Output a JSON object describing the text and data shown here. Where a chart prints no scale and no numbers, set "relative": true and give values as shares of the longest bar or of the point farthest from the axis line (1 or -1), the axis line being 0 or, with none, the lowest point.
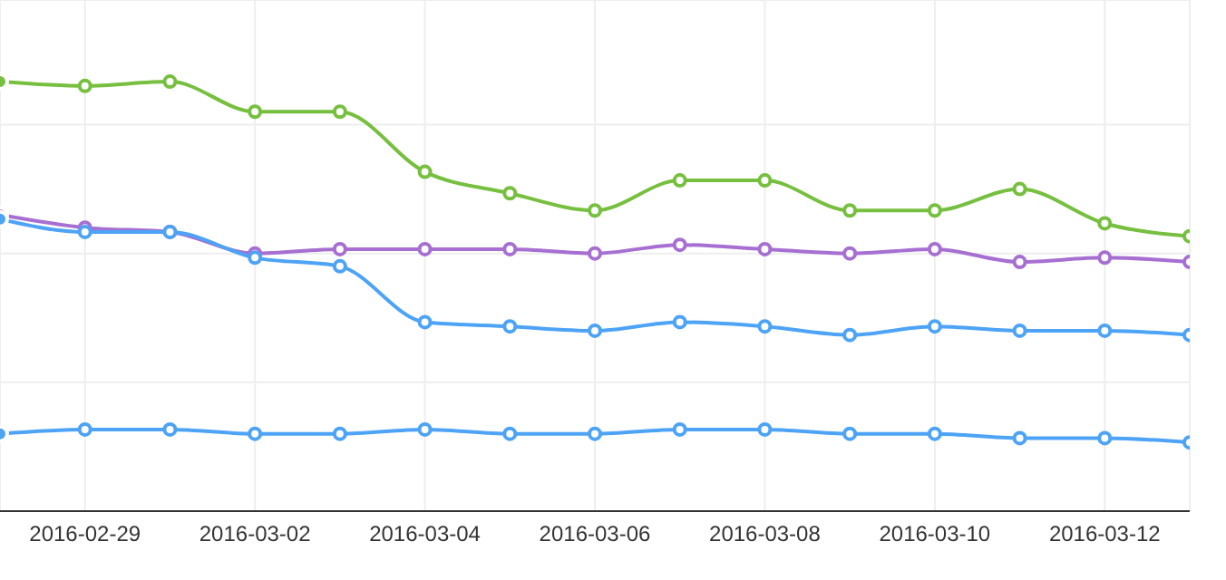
{
  "chart_data": {
    "type": "line",
    "relative": true,
    "grid": true,
    "marker": "circle",
    "line_style": "solid",
    "x": [
      "2016-02-28",
      "2016-02-29",
      "2016-03-01",
      "2016-03-02",
      "2016-03-03",
      "2016-03-04",
      "2016-03-05",
      "2016-03-06",
      "2016-03-07",
      "2016-03-08",
      "2016-03-09",
      "2016-03-10",
      "2016-03-11",
      "2016-03-12",
      "2016-03-13"
    ],
    "xlim": [
      "2016-02-28",
      "2016-03-13"
    ],
    "xticks": [
      "2016-02-29",
      "2016-03-02",
      "2016-03-04",
      "2016-03-06",
      "2016-03-08",
      "2016-03-10",
      "2016-03-12"
    ],
    "series": [
      {
        "color": "#76bf3f",
        "values": [
          1,
          0.99,
          1,
          0.93,
          0.93,
          0.79,
          0.74,
          0.7,
          0.77,
          0.77,
          0.7,
          0.7,
          0.75,
          0.67,
          0.64
        ]
      },
      {
        "color": "#a66fd1",
        "values": [
          0.69,
          0.66,
          0.65,
          0.6,
          0.61,
          0.61,
          0.61,
          0.6,
          0.62,
          0.61,
          0.6,
          0.61,
          0.58,
          0.59,
          0.58
        ]
      },
      {
        "color": "#4da3f5",
        "values": [
          0.68,
          0.65,
          0.65,
          0.59,
          0.57,
          0.44,
          0.43,
          0.42,
          0.44,
          0.43,
          0.41,
          0.43,
          0.42,
          0.42,
          0.41
        ]
      },
      {
        "color": "#4da3f5",
        "values": [
          0.18,
          0.19,
          0.19,
          0.18,
          0.18,
          0.19,
          0.18,
          0.18,
          0.19,
          0.19,
          0.18,
          0.18,
          0.17,
          0.17,
          0.16
        ]
      }
    ]
  }
}
